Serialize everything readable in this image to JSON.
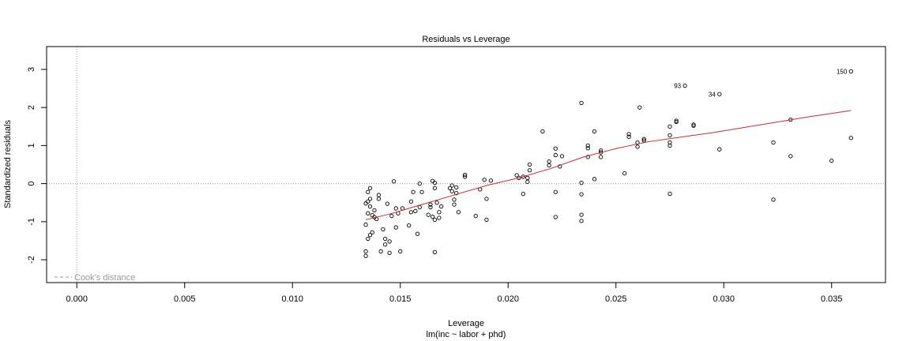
{
  "chart_data": {
    "type": "scatter",
    "title": "Residuals vs Leverage",
    "xlabel": "Leverage",
    "xsublabel": "lm(inc ~ labor + phd)",
    "ylabel": "Standardized residuals",
    "xlim": [
      -0.0014,
      0.0375
    ],
    "ylim": [
      -2.6,
      3.6
    ],
    "xticks": [
      0.0,
      0.005,
      0.01,
      0.015,
      0.02,
      0.025,
      0.03,
      0.035
    ],
    "xtick_labels": [
      "0.000",
      "0.005",
      "0.010",
      "0.015",
      "0.020",
      "0.025",
      "0.030",
      "0.035"
    ],
    "yticks": [
      -2,
      -1,
      0,
      1,
      2,
      3
    ],
    "ytick_labels": [
      "-2",
      "-1",
      "0",
      "1",
      "2",
      "3"
    ],
    "legend": {
      "label": "Cook's distance",
      "placement": "bottom-left",
      "line_style": "dashed"
    },
    "colors": {
      "points": "#000000",
      "smoother": "#c8283c",
      "reference": "#999999"
    },
    "points": [
      [
        0.0134,
        -1.9
      ],
      [
        0.0134,
        -1.78
      ],
      [
        0.0135,
        -1.45
      ],
      [
        0.0134,
        -1.08
      ],
      [
        0.0135,
        -0.78
      ],
      [
        0.0134,
        -0.52
      ],
      [
        0.0135,
        -0.47
      ],
      [
        0.0136,
        -0.4
      ],
      [
        0.0135,
        -0.22
      ],
      [
        0.0136,
        -0.12
      ],
      [
        0.0136,
        -0.6
      ],
      [
        0.0137,
        -0.83
      ],
      [
        0.0138,
        -0.88
      ],
      [
        0.0137,
        -1.28
      ],
      [
        0.0136,
        -1.35
      ],
      [
        0.0138,
        -0.7
      ],
      [
        0.0139,
        -0.93
      ],
      [
        0.014,
        -0.3
      ],
      [
        0.014,
        -0.4
      ],
      [
        0.0141,
        -1.78
      ],
      [
        0.0142,
        -1.2
      ],
      [
        0.0143,
        -1.6
      ],
      [
        0.0143,
        -1.45
      ],
      [
        0.0144,
        -0.53
      ],
      [
        0.0145,
        -1.52
      ],
      [
        0.0145,
        -1.82
      ],
      [
        0.0146,
        -0.85
      ],
      [
        0.0147,
        0.06
      ],
      [
        0.0148,
        -0.65
      ],
      [
        0.0148,
        -1.15
      ],
      [
        0.0149,
        -0.78
      ],
      [
        0.015,
        -1.78
      ],
      [
        0.0151,
        -0.65
      ],
      [
        0.0154,
        -1.1
      ],
      [
        0.0155,
        -0.75
      ],
      [
        0.0155,
        -0.47
      ],
      [
        0.0156,
        -0.22
      ],
      [
        0.0157,
        -0.72
      ],
      [
        0.0158,
        -1.32
      ],
      [
        0.0159,
        -0.62
      ],
      [
        0.016,
        -0.22
      ],
      [
        0.0159,
        0.0
      ],
      [
        0.0163,
        -0.82
      ],
      [
        0.0164,
        -0.62
      ],
      [
        0.0164,
        -0.55
      ],
      [
        0.0165,
        0.07
      ],
      [
        0.0165,
        -0.87
      ],
      [
        0.0166,
        -0.95
      ],
      [
        0.0166,
        -0.12
      ],
      [
        0.0166,
        0.02
      ],
      [
        0.0166,
        -1.8
      ],
      [
        0.0167,
        -0.5
      ],
      [
        0.0168,
        -0.9
      ],
      [
        0.0168,
        -0.75
      ],
      [
        0.0169,
        -0.6
      ],
      [
        0.0173,
        -0.12
      ],
      [
        0.0174,
        -0.2
      ],
      [
        0.0174,
        -0.05
      ],
      [
        0.0175,
        -0.42
      ],
      [
        0.0175,
        -0.55
      ],
      [
        0.0176,
        -0.1
      ],
      [
        0.0176,
        -0.25
      ],
      [
        0.0177,
        -0.75
      ],
      [
        0.018,
        0.18
      ],
      [
        0.018,
        0.23
      ],
      [
        0.0185,
        -0.85
      ],
      [
        0.0187,
        -0.15
      ],
      [
        0.0189,
        0.1
      ],
      [
        0.019,
        -0.4
      ],
      [
        0.019,
        -0.95
      ],
      [
        0.0192,
        0.08
      ],
      [
        0.0204,
        0.22
      ],
      [
        0.0205,
        0.15
      ],
      [
        0.0207,
        0.18
      ],
      [
        0.0207,
        -0.27
      ],
      [
        0.0209,
        0.05
      ],
      [
        0.0209,
        0.15
      ],
      [
        0.021,
        0.35
      ],
      [
        0.021,
        0.5
      ],
      [
        0.0216,
        1.37
      ],
      [
        0.0219,
        0.48
      ],
      [
        0.0219,
        0.58
      ],
      [
        0.0222,
        0.75
      ],
      [
        0.0222,
        0.92
      ],
      [
        0.0222,
        -0.22
      ],
      [
        0.0222,
        -0.88
      ],
      [
        0.0224,
        0.45
      ],
      [
        0.0225,
        0.72
      ],
      [
        0.0234,
        -0.28
      ],
      [
        0.0234,
        0.02
      ],
      [
        0.0234,
        -0.82
      ],
      [
        0.0234,
        -0.98
      ],
      [
        0.0234,
        2.12
      ],
      [
        0.0237,
        0.7
      ],
      [
        0.0237,
        0.93
      ],
      [
        0.0237,
        1.0
      ],
      [
        0.024,
        1.37
      ],
      [
        0.024,
        0.12
      ],
      [
        0.0243,
        0.7
      ],
      [
        0.0243,
        0.82
      ],
      [
        0.0243,
        0.87
      ],
      [
        0.0254,
        0.27
      ],
      [
        0.0256,
        1.23
      ],
      [
        0.0256,
        1.3
      ],
      [
        0.026,
        1.08
      ],
      [
        0.026,
        0.97
      ],
      [
        0.0261,
        2.0
      ],
      [
        0.0263,
        1.13
      ],
      [
        0.0263,
        1.17
      ],
      [
        0.0275,
        1.0
      ],
      [
        0.0275,
        1.08
      ],
      [
        0.0275,
        1.27
      ],
      [
        0.0275,
        1.5
      ],
      [
        0.0275,
        -0.27
      ],
      [
        0.0278,
        1.62
      ],
      [
        0.0278,
        1.65
      ],
      [
        0.0282,
        2.57
      ],
      [
        0.0286,
        1.52
      ],
      [
        0.0286,
        1.55
      ],
      [
        0.0298,
        2.35
      ],
      [
        0.0298,
        0.9
      ],
      [
        0.0323,
        1.08
      ],
      [
        0.0323,
        -0.42
      ],
      [
        0.0331,
        1.68
      ],
      [
        0.0331,
        0.72
      ],
      [
        0.035,
        0.6
      ],
      [
        0.0359,
        2.95
      ],
      [
        0.0359,
        1.2
      ]
    ],
    "labeled_points": [
      {
        "label": "150",
        "x": 0.0359,
        "y": 2.95
      },
      {
        "label": "93",
        "x": 0.0282,
        "y": 2.57
      },
      {
        "label": "34",
        "x": 0.0298,
        "y": 2.35
      }
    ],
    "smoother": [
      [
        0.0134,
        -0.95
      ],
      [
        0.0145,
        -0.8
      ],
      [
        0.016,
        -0.55
      ],
      [
        0.0175,
        -0.3
      ],
      [
        0.019,
        -0.05
      ],
      [
        0.0205,
        0.15
      ],
      [
        0.022,
        0.4
      ],
      [
        0.0235,
        0.7
      ],
      [
        0.025,
        0.92
      ],
      [
        0.0265,
        1.1
      ],
      [
        0.028,
        1.22
      ],
      [
        0.0295,
        1.34
      ],
      [
        0.031,
        1.48
      ],
      [
        0.0325,
        1.62
      ],
      [
        0.034,
        1.76
      ],
      [
        0.0359,
        1.92
      ]
    ]
  }
}
